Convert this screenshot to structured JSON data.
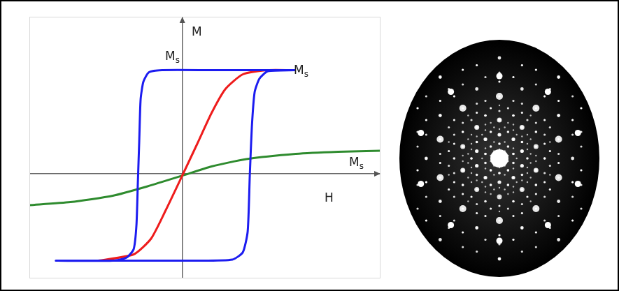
{
  "chart_data": {
    "type": "line",
    "annotations": [
      "M",
      "H",
      "Ms",
      "Ms",
      "Ms"
    ],
    "series": [
      {
        "color": "#1c1cf0",
        "x": [
          1.63,
          0.42,
          -0.29,
          -0.48,
          -0.56,
          -0.6,
          -0.62,
          -0.64,
          -0.66,
          -0.7,
          -0.8,
          -1.0,
          -1.82,
          -1.11,
          0.21,
          0.72,
          0.87,
          0.94,
          0.97,
          1.0,
          1.04,
          1.11,
          1.23,
          1.63
        ],
        "values": [
          0.99,
          0.99,
          0.99,
          0.97,
          0.88,
          0.71,
          0.31,
          -0.09,
          -0.49,
          -0.72,
          -0.8,
          -0.83,
          -0.83,
          -0.83,
          -0.83,
          -0.82,
          -0.75,
          -0.55,
          -0.02,
          0.45,
          0.78,
          0.91,
          0.98,
          0.99
        ]
      },
      {
        "color": "#ee1c1c",
        "x": [
          -1.21,
          -0.7,
          -0.45,
          -0.24,
          -0.01,
          0.21,
          0.42,
          0.62,
          0.87,
          1.23,
          1.58
        ],
        "values": [
          -0.83,
          -0.77,
          -0.62,
          -0.35,
          -0.03,
          0.28,
          0.58,
          0.81,
          0.95,
          0.99,
          0.99
        ]
      },
      {
        "color": "#2e8b2e",
        "x": [
          -2.2,
          -1.61,
          -1.0,
          -0.5,
          -0.01,
          0.42,
          0.92,
          1.63,
          2.24,
          2.85
        ],
        "values": [
          -0.3,
          -0.27,
          -0.21,
          -0.12,
          -0.02,
          0.07,
          0.14,
          0.19,
          0.21,
          0.22
        ]
      }
    ],
    "xlim": [
      -2.2,
      2.85
    ],
    "ylim": [
      -1.0,
      1.5
    ],
    "xticks": [
      0
    ],
    "yticks": [
      0
    ],
    "grid": true,
    "tick_labels": false
  }
}
